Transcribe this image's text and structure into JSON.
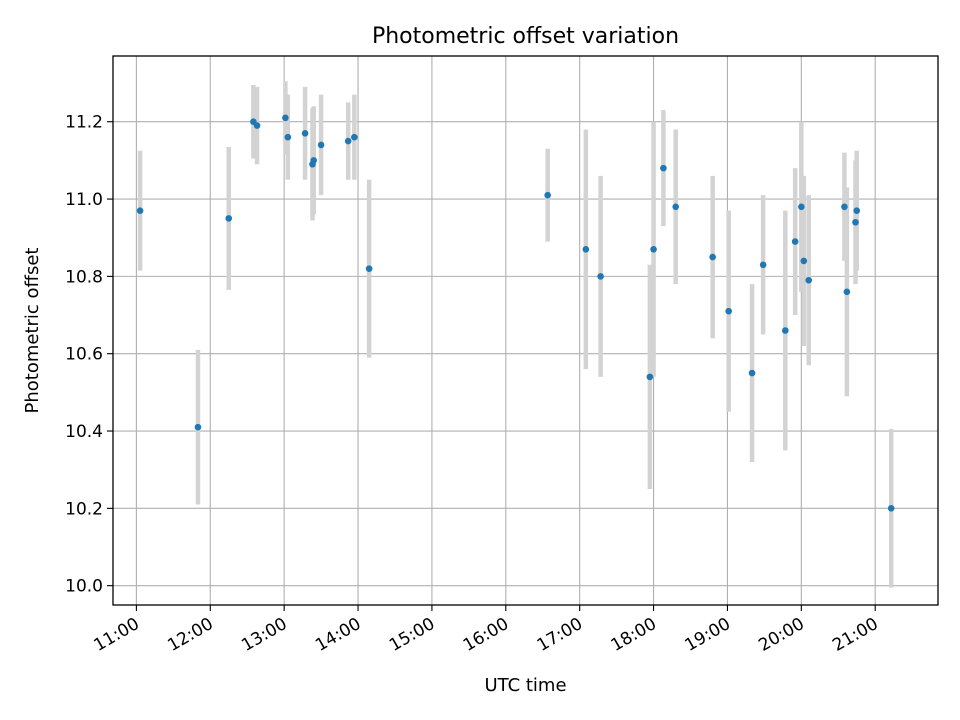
{
  "chart_data": {
    "type": "scatter",
    "title": "Photometric offset variation",
    "xlabel": "UTC time",
    "ylabel": "Photometric offset",
    "grid": true,
    "ylim": [
      9.95,
      11.37
    ],
    "xlim": [
      "10:41",
      "21:51"
    ],
    "x_ticks": [
      "11:00",
      "12:00",
      "13:00",
      "14:00",
      "15:00",
      "16:00",
      "17:00",
      "18:00",
      "19:00",
      "20:00",
      "21:00"
    ],
    "y_ticks": [
      "10.0",
      "10.2",
      "10.4",
      "10.6",
      "10.8",
      "11.0",
      "11.2"
    ],
    "colors": {
      "point": "#1f77b4",
      "errorbar": "#d3d3d3"
    },
    "points": [
      {
        "x": "11:03",
        "y": 10.97,
        "yerr": 0.155
      },
      {
        "x": "11:50",
        "y": 10.41,
        "yerr": 0.2
      },
      {
        "x": "12:15",
        "y": 10.95,
        "yerr": 0.185
      },
      {
        "x": "12:35",
        "y": 11.2,
        "yerr": 0.095
      },
      {
        "x": "12:38",
        "y": 11.19,
        "yerr": 0.1
      },
      {
        "x": "13:01",
        "y": 11.21,
        "yerr": 0.095
      },
      {
        "x": "13:03",
        "y": 11.16,
        "yerr": 0.11
      },
      {
        "x": "13:17",
        "y": 11.17,
        "yerr": 0.12
      },
      {
        "x": "13:23",
        "y": 11.09,
        "yerr": 0.145
      },
      {
        "x": "13:24",
        "y": 11.1,
        "yerr": 0.14
      },
      {
        "x": "13:30",
        "y": 11.14,
        "yerr": 0.13
      },
      {
        "x": "13:52",
        "y": 11.15,
        "yerr": 0.1
      },
      {
        "x": "13:57",
        "y": 11.16,
        "yerr": 0.11
      },
      {
        "x": "14:09",
        "y": 10.82,
        "yerr": 0.23
      },
      {
        "x": "16:34",
        "y": 11.01,
        "yerr": 0.12
      },
      {
        "x": "17:05",
        "y": 10.87,
        "yerr": 0.31
      },
      {
        "x": "17:17",
        "y": 10.8,
        "yerr": 0.26
      },
      {
        "x": "17:57",
        "y": 10.54,
        "yerr": 0.29
      },
      {
        "x": "18:00",
        "y": 10.87,
        "yerr": 0.33
      },
      {
        "x": "18:08",
        "y": 11.08,
        "yerr": 0.15
      },
      {
        "x": "18:18",
        "y": 10.98,
        "yerr": 0.2
      },
      {
        "x": "18:48",
        "y": 10.85,
        "yerr": 0.21
      },
      {
        "x": "19:01",
        "y": 10.71,
        "yerr": 0.26
      },
      {
        "x": "19:20",
        "y": 10.55,
        "yerr": 0.23
      },
      {
        "x": "19:29",
        "y": 10.83,
        "yerr": 0.18
      },
      {
        "x": "19:47",
        "y": 10.66,
        "yerr": 0.31
      },
      {
        "x": "19:55",
        "y": 10.89,
        "yerr": 0.19
      },
      {
        "x": "20:00",
        "y": 10.98,
        "yerr": 0.22
      },
      {
        "x": "20:02",
        "y": 10.84,
        "yerr": 0.22
      },
      {
        "x": "20:06",
        "y": 10.79,
        "yerr": 0.22
      },
      {
        "x": "20:35",
        "y": 10.98,
        "yerr": 0.14
      },
      {
        "x": "20:37",
        "y": 10.76,
        "yerr": 0.27
      },
      {
        "x": "20:44",
        "y": 10.94,
        "yerr": 0.16
      },
      {
        "x": "20:45",
        "y": 10.97,
        "yerr": 0.155
      },
      {
        "x": "21:13",
        "y": 10.2,
        "yerr": 0.205
      }
    ]
  }
}
